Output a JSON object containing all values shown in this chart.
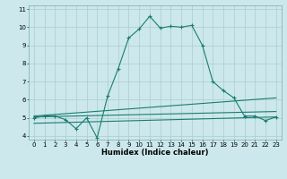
{
  "title": "",
  "xlabel": "Humidex (Indice chaleur)",
  "ylabel": "",
  "bg_color": "#cce8ec",
  "line_color": "#1a7d6e",
  "xlim": [
    -0.5,
    23.5
  ],
  "ylim": [
    3.8,
    11.2
  ],
  "yticks": [
    4,
    5,
    6,
    7,
    8,
    9,
    10,
    11
  ],
  "xticks": [
    0,
    1,
    2,
    3,
    4,
    5,
    6,
    7,
    8,
    9,
    10,
    11,
    12,
    13,
    14,
    15,
    16,
    17,
    18,
    19,
    20,
    21,
    22,
    23
  ],
  "series1_x": [
    0,
    1,
    2,
    3,
    4,
    5,
    6,
    7,
    8,
    9,
    10,
    11,
    12,
    13,
    14,
    15,
    16,
    17,
    18,
    19,
    20,
    21,
    22,
    23
  ],
  "series1_y": [
    5.0,
    5.1,
    5.1,
    4.9,
    4.4,
    5.0,
    3.9,
    6.2,
    7.7,
    9.4,
    9.9,
    10.6,
    9.95,
    10.05,
    10.0,
    10.1,
    9.0,
    7.0,
    6.5,
    6.1,
    5.1,
    5.1,
    4.85,
    5.05
  ],
  "series2_x": [
    0,
    23
  ],
  "series2_y": [
    4.7,
    5.05
  ],
  "series3_x": [
    0,
    23
  ],
  "series3_y": [
    5.05,
    5.35
  ],
  "series4_x": [
    0,
    23
  ],
  "series4_y": [
    5.1,
    6.1
  ],
  "grid_color": "#aaccd2",
  "grid_linewidth": 0.5,
  "line_linewidth": 0.8,
  "marker_size": 3,
  "xlabel_fontsize": 6.0,
  "tick_fontsize": 5.0
}
